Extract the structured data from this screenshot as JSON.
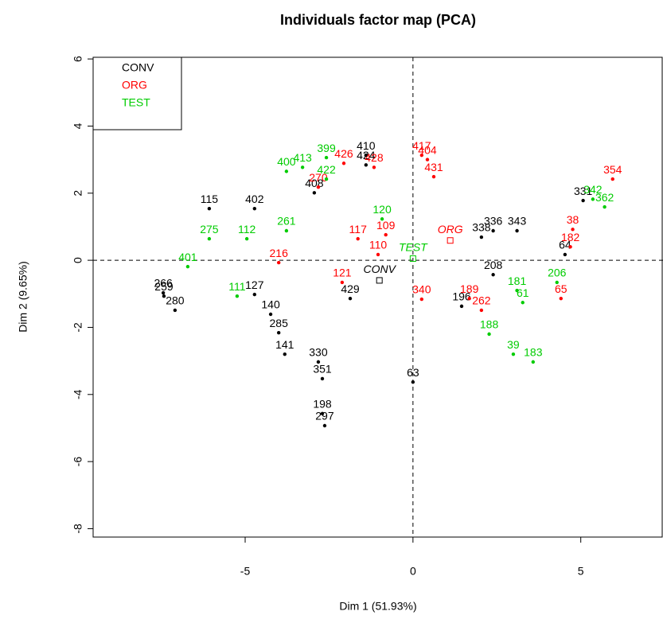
{
  "chart_data": {
    "type": "scatter",
    "title": "Individuals factor map (PCA)",
    "x_label": "Dim 1 (51.93%)",
    "y_label": "Dim 2 (9.65%)",
    "xlim": [
      -9.53,
      7.45
    ],
    "ylim": [
      -8.25,
      6.05
    ],
    "xticks": [
      -5,
      0,
      5
    ],
    "yticks": [
      -8,
      -6,
      -4,
      -2,
      0,
      2,
      4,
      6
    ],
    "hline": 0,
    "vline": 0,
    "legend": "top-left",
    "series": [
      {
        "name": "CONV",
        "color": "#000000",
        "centroid": [
          -1.0,
          -0.6
        ],
        "labels": [
          "266",
          "259",
          "280",
          "115",
          "402",
          "127",
          "140",
          "285",
          "141",
          "330",
          "351",
          "198",
          "297",
          "63",
          "410",
          "424",
          "408",
          "429",
          "336",
          "338",
          "196",
          "64",
          "331",
          "208",
          "343"
        ],
        "x": [
          -7.44,
          -7.42,
          -7.09,
          -6.07,
          -4.72,
          -4.72,
          -4.24,
          -4.0,
          -3.82,
          -2.82,
          -2.7,
          -2.7,
          -2.63,
          0,
          -1.4,
          -1.4,
          -2.94,
          -1.87,
          2.39,
          2.04,
          1.45,
          4.53,
          5.07,
          2.39,
          3.1
        ],
        "y": [
          -0.97,
          -1.07,
          -1.49,
          1.54,
          1.54,
          -1.02,
          -1.61,
          -2.16,
          -2.8,
          -3.03,
          -3.53,
          -4.57,
          -4.93,
          -3.63,
          3.13,
          2.84,
          2.01,
          -1.14,
          0.88,
          0.69,
          -1.37,
          0.17,
          1.78,
          -0.43,
          0.88
        ]
      },
      {
        "name": "ORG",
        "color": "#ff0000",
        "centroid": [
          1.11,
          0.59
        ],
        "labels": [
          "417",
          "404",
          "431",
          "426",
          "428",
          "354",
          "38",
          "340",
          "189",
          "182",
          "65",
          "262",
          "117",
          "109",
          "110",
          "216",
          "270",
          "121"
        ],
        "x": [
          0.26,
          0.43,
          0.62,
          -2.06,
          -1.16,
          5.95,
          4.76,
          0.26,
          1.68,
          4.69,
          4.41,
          2.04,
          -1.64,
          -0.81,
          -1.04,
          -4.0,
          -2.82,
          -2.11
        ],
        "y": [
          3.13,
          3.0,
          2.49,
          2.89,
          2.77,
          2.42,
          0.92,
          -1.16,
          -1.14,
          0.4,
          -1.14,
          -1.49,
          0.64,
          0.76,
          0.17,
          -0.07,
          2.18,
          -0.66
        ]
      },
      {
        "name": "TEST",
        "color": "#00cc00",
        "centroid": [
          0.0,
          0.05
        ],
        "labels": [
          "400",
          "399",
          "422",
          "413",
          "275",
          "112",
          "261",
          "401",
          "111",
          "342",
          "362",
          "206",
          "61",
          "183",
          "39",
          "188",
          "181",
          "120"
        ],
        "x": [
          -3.77,
          -2.58,
          -2.58,
          -3.29,
          -6.07,
          -4.95,
          -3.77,
          -6.71,
          -5.24,
          5.36,
          5.71,
          4.29,
          3.27,
          3.58,
          2.99,
          2.27,
          3.1,
          -0.92
        ],
        "y": [
          2.65,
          3.06,
          2.42,
          2.77,
          0.64,
          0.64,
          0.88,
          -0.19,
          -1.07,
          1.82,
          1.59,
          -0.66,
          -1.26,
          -3.03,
          -2.8,
          -2.2,
          -0.9,
          1.23
        ]
      }
    ]
  }
}
